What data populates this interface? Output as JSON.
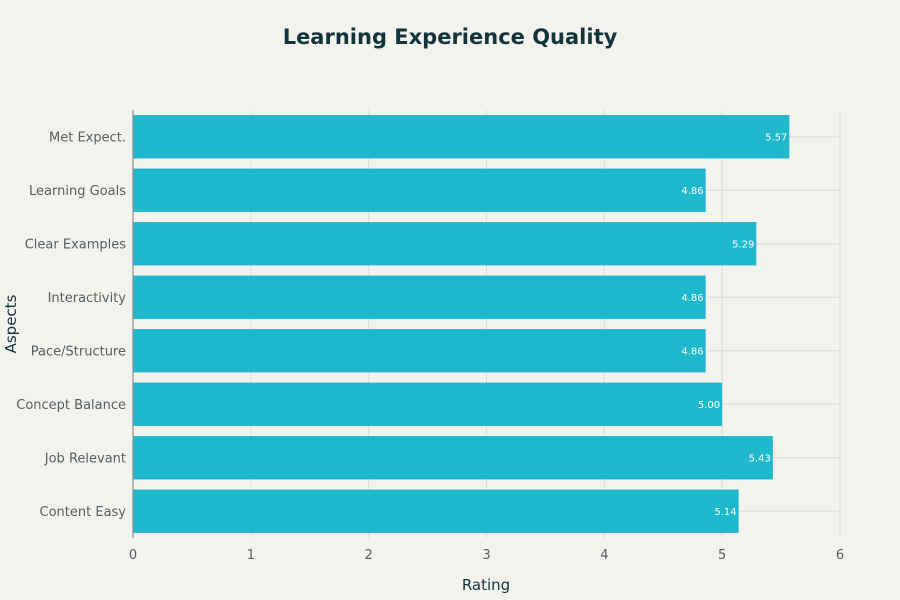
{
  "chart_data": {
    "type": "bar",
    "orientation": "horizontal",
    "title": "Learning Experience Quality",
    "xlabel": "Rating",
    "ylabel": "Aspects",
    "xlim": [
      0,
      6
    ],
    "xticks": [
      "0",
      "1",
      "2",
      "3",
      "4",
      "5",
      "6"
    ],
    "categories": [
      "Met Expect.",
      "Learning Goals",
      "Clear Examples",
      "Interactivity",
      "Pace/Structure",
      "Concept Balance",
      "Job Relevant",
      "Content Easy"
    ],
    "values": [
      5.57,
      4.86,
      5.29,
      4.86,
      4.86,
      5.0,
      5.43,
      5.14
    ],
    "value_labels": [
      "5.57",
      "4.86",
      "5.29",
      "4.86",
      "4.86",
      "5.00",
      "5.43",
      "5.14"
    ],
    "bar_color": "#1fb8cd",
    "grid": true
  }
}
